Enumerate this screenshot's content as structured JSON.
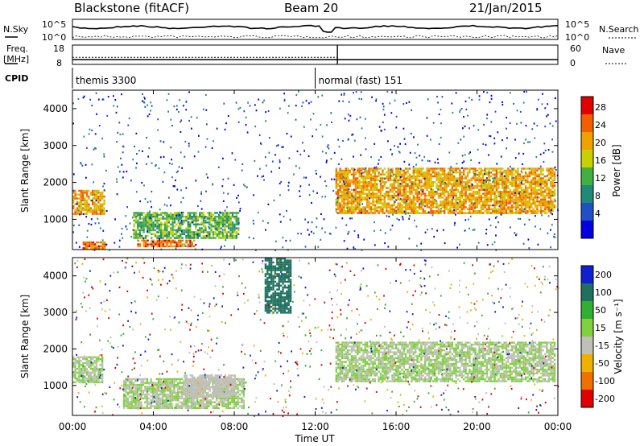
{
  "header": {
    "station": "Blackstone (fitACF)",
    "beam": "Beam 20",
    "date": "21/Jan/2015"
  },
  "noise_panel": {
    "left_label": "N.Sky",
    "right_label": "N.Search",
    "left_ticks": [
      "10^5",
      "10^0"
    ],
    "right_ticks": [
      "10^5",
      "10^0"
    ]
  },
  "freq_panel": {
    "left_label_1": "Freq.",
    "left_label_2": "[MHz]",
    "right_label": "Nave",
    "left_ticks": [
      "18",
      "8"
    ],
    "right_ticks": [
      "60",
      "0"
    ],
    "freq_mhz": 10.5,
    "nave_before": 22,
    "nave_after": 60,
    "switch_hour": 13.1
  },
  "cpid_panel": {
    "label": "CPID",
    "modes": [
      {
        "name": "themis 3300",
        "start_hour": 0.0
      },
      {
        "name": "normal (fast) 151",
        "start_hour": 12.0
      }
    ]
  },
  "power_panel": {
    "ylabel": "Slant Range [km]",
    "colorbar_label": "Power [dB]",
    "colorbar_ticks": [
      "28",
      "24",
      "20",
      "16",
      "12",
      "8",
      "4"
    ],
    "colors": [
      "#0000e0",
      "#2050c8",
      "#208a78",
      "#40b040",
      "#c8d000",
      "#f0a000",
      "#f06000",
      "#e00000"
    ]
  },
  "velocity_panel": {
    "ylabel": "Slant Range [km]",
    "colorbar_label": "Velocity [m s⁻¹]",
    "colorbar_ticks": [
      "200",
      "100",
      "50",
      "15",
      "-15",
      "-50",
      "-100",
      "-200"
    ],
    "colors": [
      "#1020d0",
      "#207060",
      "#30b030",
      "#80d040",
      "#c0c0b8",
      "#f0b000",
      "#f07000",
      "#e00000"
    ]
  },
  "x_axis": {
    "label": "Time UT",
    "ticks": [
      "00:00",
      "04:00",
      "08:00",
      "12:00",
      "16:00",
      "20:00",
      "00:00"
    ]
  },
  "y_axis": {
    "ticks": [
      "4000",
      "3000",
      "2000",
      "1000"
    ]
  },
  "chart_data": {
    "type": "heatmap",
    "x_range_hours": [
      0,
      24
    ],
    "y_range_km": [
      180,
      4500
    ],
    "grid": false,
    "power_bands": [
      {
        "hours": [
          0.0,
          1.6
        ],
        "range_km": [
          1150,
          1800
        ],
        "power_db": 22
      },
      {
        "hours": [
          0.5,
          1.6
        ],
        "range_km": [
          200,
          400
        ],
        "power_db": 24
      },
      {
        "hours": [
          3.0,
          8.2
        ],
        "range_km": [
          500,
          1200
        ],
        "power_db": 14
      },
      {
        "hours": [
          3.2,
          6.0
        ],
        "range_km": [
          250,
          450
        ],
        "power_db": 26
      },
      {
        "hours": [
          13.0,
          23.8
        ],
        "range_km": [
          1150,
          2400
        ],
        "power_db": 22
      }
    ],
    "velocity_bands": [
      {
        "hours": [
          0.0,
          1.5
        ],
        "range_km": [
          1100,
          1800
        ],
        "velocity_ms": 0
      },
      {
        "hours": [
          2.5,
          8.5
        ],
        "range_km": [
          400,
          1200
        ],
        "velocity_ms": 0
      },
      {
        "hours": [
          5.5,
          8.0
        ],
        "range_km": [
          700,
          1300
        ],
        "velocity_ms": -40
      },
      {
        "hours": [
          13.0,
          23.8
        ],
        "range_km": [
          1100,
          2200
        ],
        "velocity_ms": 0
      },
      {
        "hours": [
          9.5,
          10.8
        ],
        "range_km": [
          3000,
          4500
        ],
        "velocity_ms": 150
      }
    ]
  }
}
